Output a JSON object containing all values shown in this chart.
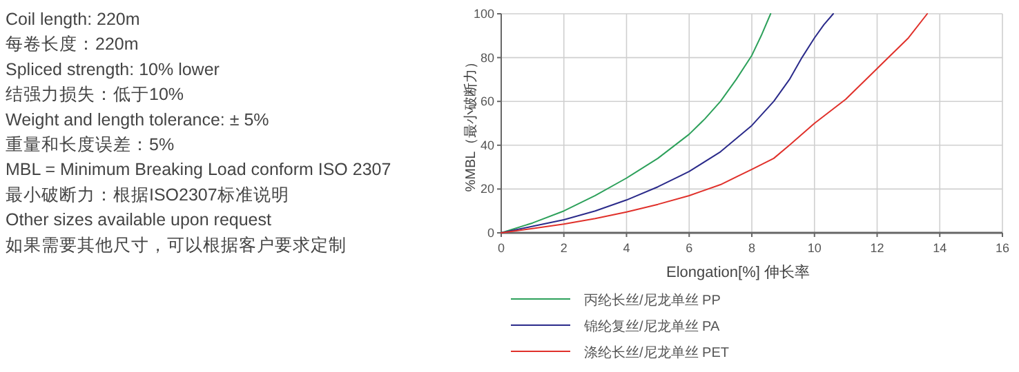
{
  "chart_data": {
    "type": "line",
    "xlabel": "Elongation[%]   伸长率",
    "ylabel": "%MBL（最小破断力）",
    "annotations": [
      "Coil length: 220m",
      "每卷长度：220m",
      "Spliced strength: 10% lower",
      "结强力损失：低于10%",
      "Weight and length tolerance: ± 5%",
      "重量和长度误差：5%",
      "MBL = Minimum Breaking Load conform ISO 2307",
      "最小破断力：根据ISO2307标准说明",
      "Other sizes available upon request",
      "如果需要其他尺寸，可以根据客户要求定制"
    ],
    "series": [
      {
        "name": "丙纶长丝/尼龙单丝   PP",
        "color": "#2ca05a",
        "x": [
          0,
          1,
          2,
          3,
          4,
          5,
          6,
          6.5,
          7,
          7.5,
          8,
          8.3,
          8.6
        ],
        "values": [
          0,
          4.5,
          10,
          17,
          25,
          34,
          45,
          52,
          60,
          70,
          81,
          90,
          100
        ]
      },
      {
        "name": "锦纶复丝/尼龙单丝   PA",
        "color": "#2a2a8a",
        "x": [
          0,
          1,
          2,
          3,
          4,
          5,
          6,
          7,
          8,
          8.7,
          9.2,
          9.6,
          10,
          10.3,
          10.6
        ],
        "values": [
          0,
          3,
          6,
          10,
          15,
          21,
          28,
          37,
          49,
          60,
          70,
          80,
          89,
          95,
          100
        ]
      },
      {
        "name": "涤纶长丝/尼龙单丝   PET",
        "color": "#e0302a",
        "x": [
          0,
          1,
          2,
          3,
          4,
          5,
          6,
          7,
          8,
          8.7,
          9.2,
          10,
          11,
          12,
          13,
          13.6
        ],
        "values": [
          0,
          2,
          4,
          6.5,
          9.5,
          13,
          17,
          22,
          29,
          34,
          40,
          50,
          61,
          75,
          89,
          100
        ]
      }
    ],
    "xlim": [
      0,
      16
    ],
    "ylim": [
      0,
      100
    ],
    "xticks": [
      0,
      2,
      4,
      6,
      8,
      10,
      12,
      14,
      16
    ],
    "yticks": [
      0,
      20,
      40,
      60,
      80,
      100
    ],
    "grid": true,
    "legend": "bottom",
    "marker": "none",
    "line_style": "solid"
  }
}
